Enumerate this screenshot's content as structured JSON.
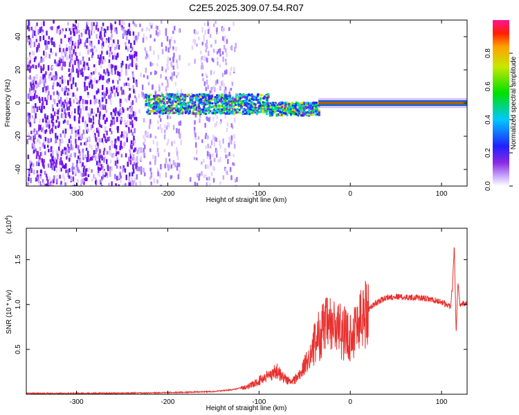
{
  "title": "C2E5.2025.309.07.54.R07",
  "chart_data": [
    {
      "type": "heatmap",
      "xlabel": "Height of straight line (km)",
      "ylabel": "Frequency (Hz)",
      "xlim": [
        -355,
        128
      ],
      "ylim": [
        -50,
        50
      ],
      "xticks": [
        -300,
        -200,
        -100,
        0,
        100
      ],
      "yticks": [
        -40,
        -20,
        0,
        20,
        40
      ],
      "colorbar": {
        "label": "Normalized spectral amplitude",
        "range": [
          0,
          1
        ],
        "ticks": [
          "0.0",
          "0.2",
          "0.4",
          "0.6",
          "0.8"
        ],
        "colormap": "rainbow (white-violet-blue-cyan-green-yellow-red-magenta)"
      },
      "features": {
        "noise_region_x": [
          -355,
          -125
        ],
        "signal_center_freq_hz": 0,
        "signal_band_visible_from_x": -225,
        "strong_narrow_tone_from_x": -35
      }
    },
    {
      "type": "line",
      "xlabel": "Height of straight line (km)",
      "ylabel": "SNR (10 * v/v)",
      "yscale_label": "(x10",
      "yscale_exponent": "4",
      "xlim": [
        -355,
        128
      ],
      "ylim": [
        0,
        18500
      ],
      "xticks": [
        -300,
        -200,
        -100,
        0,
        100
      ],
      "yticks": [
        "0.5",
        "1.0",
        "1.5"
      ],
      "series": [
        {
          "color": "#e8302e",
          "x": [
            -355,
            -300,
            -250,
            -200,
            -150,
            -130,
            -110,
            -100,
            -90,
            -80,
            -75,
            -65,
            -55,
            -45,
            -35,
            -28,
            -20,
            -10,
            0,
            10,
            20,
            30,
            40,
            50,
            60,
            70,
            80,
            90,
            100,
            105,
            110,
            112,
            114,
            116,
            118,
            120,
            128
          ],
          "y": [
            100,
            100,
            120,
            180,
            300,
            500,
            900,
            1500,
            2100,
            2600,
            2000,
            1300,
            2200,
            4200,
            6500,
            7500,
            7600,
            7000,
            6400,
            8200,
            9500,
            10300,
            10800,
            10900,
            10800,
            10800,
            10700,
            10500,
            10300,
            10000,
            9800,
            12000,
            16500,
            6500,
            12500,
            10000,
            10200
          ]
        }
      ]
    }
  ]
}
